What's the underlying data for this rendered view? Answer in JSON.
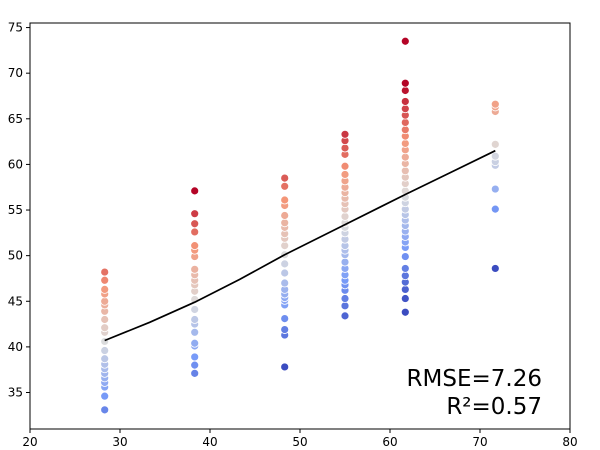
{
  "chart_data": {
    "type": "scatter",
    "title": "",
    "xlabel": "",
    "ylabel": "",
    "xlim": [
      20,
      80
    ],
    "ylim": [
      31,
      75.5
    ],
    "xticks": [
      20,
      30,
      40,
      50,
      60,
      70,
      80
    ],
    "yticks": [
      35,
      40,
      45,
      50,
      55,
      60,
      65,
      70,
      75
    ],
    "grid": false,
    "legend": "none",
    "colormap": "coolwarm",
    "colors": {
      "low": "#3b4cc0",
      "mid": "#dddddd",
      "high": "#b40426",
      "fit_line": "#000000"
    },
    "series": [
      {
        "x": 28.3,
        "y": [
          33.1,
          34.6,
          35.6,
          36.1,
          36.6,
          37.1,
          37.6,
          38.1,
          38.7,
          39.6,
          40.6,
          41.6,
          42.1,
          43.0,
          43.9,
          44.6,
          45.0,
          45.8,
          46.3,
          47.3,
          48.2
        ]
      },
      {
        "x": 38.3,
        "y": [
          37.1,
          38.0,
          38.9,
          40.1,
          40.4,
          41.6,
          42.5,
          43.0,
          44.1,
          45.2,
          46.1,
          46.8,
          47.3,
          47.9,
          48.5,
          49.9,
          50.6,
          51.1,
          52.6,
          53.5,
          54.6,
          57.1
        ]
      },
      {
        "x": 48.3,
        "y": [
          37.8,
          41.3,
          41.9,
          43.1,
          44.6,
          45.1,
          45.4,
          45.8,
          46.3,
          47.0,
          48.1,
          49.1,
          50.1,
          51.1,
          51.9,
          52.4,
          53.1,
          53.6,
          54.4,
          55.5,
          56.1,
          57.6,
          58.5
        ]
      },
      {
        "x": 55.0,
        "y": [
          43.4,
          44.5,
          45.3,
          46.2,
          46.8,
          47.3,
          47.9,
          48.6,
          49.3,
          50.1,
          50.6,
          51.1,
          51.8,
          52.5,
          53.1,
          53.6,
          54.3,
          55.1,
          55.7,
          56.3,
          56.9,
          57.5,
          58.2,
          58.9,
          59.8,
          61.1,
          61.8,
          62.6,
          63.3
        ]
      },
      {
        "x": 61.7,
        "y": [
          43.8,
          45.3,
          46.3,
          47.1,
          47.8,
          48.6,
          49.9,
          50.9,
          51.5,
          52.1,
          52.7,
          53.3,
          53.9,
          54.5,
          55.1,
          55.8,
          56.4,
          57.1,
          57.9,
          58.6,
          59.3,
          60.1,
          60.8,
          61.6,
          62.3,
          63.1,
          63.8,
          64.6,
          65.4,
          66.1,
          66.9,
          68.1,
          68.9,
          73.5
        ]
      },
      {
        "x": 71.7,
        "y": [
          48.6,
          55.1,
          57.3,
          59.9,
          60.3,
          60.9,
          62.2,
          65.8,
          66.3,
          66.6
        ]
      }
    ],
    "fit_line": {
      "x": [
        28.3,
        33.3,
        38.3,
        43.3,
        48.3,
        55.0,
        61.7,
        66.7,
        71.7
      ],
      "y": [
        40.7,
        42.7,
        44.9,
        47.4,
        50.1,
        53.4,
        56.7,
        59.1,
        61.5
      ]
    },
    "annotations": [
      "RMSE=7.26",
      "R²=0.57"
    ]
  }
}
